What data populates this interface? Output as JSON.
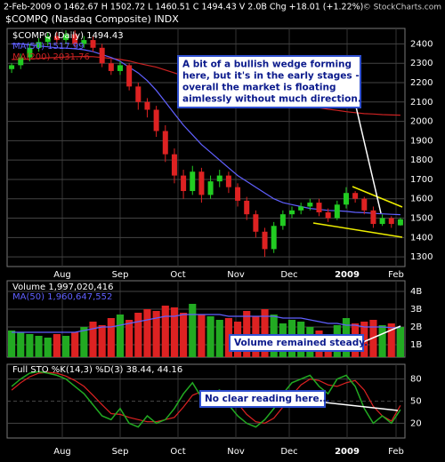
{
  "chart_data": [
    {
      "type": "candlestick",
      "title": "$COMPQ (Nasdaq Composite) INDX",
      "header": "2-Feb-2009   O 1462.67  H 1502.72  L 1460.51  C 1494.43  V 2.0B  Chg +18.01 (+1.22%)",
      "watermark": "© StockCharts.com",
      "x_labels": [
        "Aug",
        "Sep",
        "Oct",
        "Nov",
        "Dec",
        "2009",
        "Feb"
      ],
      "ylim": [
        1250,
        2480
      ],
      "yticks": [
        1300,
        1400,
        1500,
        1600,
        1700,
        1800,
        1900,
        2000,
        2100,
        2200,
        2300,
        2400
      ],
      "grid": true,
      "series": [
        {
          "name": "$COMPQ (Daily) 1494.43",
          "up_color": "#22cc22",
          "down_color": "#dd2222",
          "open": [
            2270,
            2290,
            2330,
            2380,
            2410,
            2440,
            2420,
            2450,
            2400,
            2420,
            2380,
            2300,
            2260,
            2290,
            2180,
            2100,
            2060,
            1950,
            1830,
            1720,
            1640,
            1740,
            1620,
            1690,
            1720,
            1660,
            1590,
            1520,
            1430,
            1340,
            1460,
            1520,
            1540,
            1560,
            1580,
            1530,
            1500,
            1570,
            1630,
            1600,
            1540,
            1470,
            1500,
            1463
          ],
          "high": [
            2300,
            2350,
            2400,
            2430,
            2460,
            2460,
            2470,
            2470,
            2440,
            2440,
            2400,
            2320,
            2310,
            2300,
            2200,
            2120,
            2080,
            1980,
            1860,
            1750,
            1770,
            1760,
            1720,
            1750,
            1740,
            1680,
            1610,
            1540,
            1450,
            1480,
            1540,
            1560,
            1580,
            1600,
            1600,
            1550,
            1590,
            1660,
            1640,
            1610,
            1560,
            1520,
            1510,
            1503
          ],
          "low": [
            2250,
            2270,
            2310,
            2360,
            2390,
            2400,
            2400,
            2380,
            2380,
            2360,
            2280,
            2240,
            2240,
            2160,
            2060,
            2020,
            1920,
            1790,
            1680,
            1600,
            1620,
            1580,
            1600,
            1660,
            1630,
            1560,
            1490,
            1400,
            1300,
            1320,
            1440,
            1500,
            1520,
            1540,
            1510,
            1480,
            1490,
            1550,
            1580,
            1520,
            1450,
            1460,
            1450,
            1461
          ],
          "close": [
            2290,
            2330,
            2380,
            2410,
            2440,
            2420,
            2450,
            2400,
            2420,
            2380,
            2300,
            2260,
            2290,
            2180,
            2100,
            2060,
            1950,
            1830,
            1720,
            1640,
            1740,
            1620,
            1690,
            1720,
            1660,
            1590,
            1520,
            1430,
            1340,
            1460,
            1520,
            1540,
            1560,
            1580,
            1530,
            1500,
            1570,
            1630,
            1600,
            1540,
            1470,
            1500,
            1470,
            1494
          ]
        },
        {
          "name": "MA(50) 1517.99",
          "color": "#6060ff",
          "values": [
            2400,
            2400,
            2395,
            2390,
            2385,
            2380,
            2378,
            2375,
            2370,
            2360,
            2345,
            2330,
            2310,
            2280,
            2250,
            2210,
            2160,
            2100,
            2040,
            1980,
            1930,
            1880,
            1840,
            1800,
            1760,
            1720,
            1690,
            1660,
            1630,
            1600,
            1580,
            1570,
            1560,
            1550,
            1545,
            1540,
            1538,
            1535,
            1530,
            1528,
            1525,
            1522,
            1520,
            1518
          ]
        },
        {
          "name": "MA(200) 2031.76",
          "color": "#cc2222",
          "values": [
            2320,
            2320,
            2322,
            2325,
            2328,
            2330,
            2332,
            2334,
            2335,
            2334,
            2330,
            2325,
            2320,
            2312,
            2300,
            2290,
            2280,
            2265,
            2250,
            2235,
            2220,
            2205,
            2190,
            2180,
            2170,
            2158,
            2145,
            2130,
            2118,
            2108,
            2100,
            2092,
            2085,
            2078,
            2070,
            2063,
            2057,
            2050,
            2045,
            2040,
            2038,
            2035,
            2033,
            2032
          ]
        }
      ],
      "annotation": [
        "A bit of a bullish wedge forming",
        "here, but it's in the early stages -",
        "overall the market is floating",
        "aimlessly without much direction."
      ]
    },
    {
      "type": "bar",
      "ylim": [
        0.3,
        4.6
      ],
      "yticks": [
        {
          "value": 1,
          "label": "1B"
        },
        {
          "value": 2,
          "label": "2B"
        },
        {
          "value": 3,
          "label": "3B"
        },
        {
          "value": 4,
          "label": "4B"
        }
      ],
      "grid": true,
      "series": [
        {
          "name": "Volume 1,997,020,416",
          "up_color": "#22aa22",
          "down_color": "#dd2222",
          "values": [
            1.8,
            1.7,
            1.6,
            1.5,
            1.4,
            1.6,
            1.5,
            1.7,
            2.0,
            2.3,
            2.1,
            2.5,
            2.7,
            2.4,
            2.8,
            3.0,
            2.9,
            3.2,
            3.1,
            2.8,
            3.3,
            2.7,
            2.6,
            2.4,
            2.5,
            2.3,
            2.9,
            2.6,
            3.0,
            2.7,
            2.2,
            2.4,
            2.3,
            2.0,
            1.8,
            1.6,
            2.1,
            2.5,
            2.2,
            2.3,
            2.4,
            2.1,
            2.2,
            2.0
          ]
        },
        {
          "name": "MA(50) 1,960,647,552",
          "color": "#6060ff",
          "values": [
            1.7,
            1.7,
            1.7,
            1.7,
            1.7,
            1.7,
            1.7,
            1.7,
            1.8,
            1.9,
            2.0,
            2.0,
            2.1,
            2.2,
            2.3,
            2.4,
            2.5,
            2.6,
            2.6,
            2.7,
            2.7,
            2.7,
            2.7,
            2.7,
            2.6,
            2.6,
            2.6,
            2.6,
            2.6,
            2.6,
            2.5,
            2.5,
            2.5,
            2.4,
            2.3,
            2.2,
            2.2,
            2.1,
            2.1,
            2.0,
            2.0,
            2.0,
            1.96,
            1.96
          ]
        }
      ],
      "annotation": [
        "Volume remained steady."
      ]
    },
    {
      "type": "line",
      "title": "Full STO %K(14,3) %D(3) 38.44, 44.16",
      "x_labels": [
        "Aug",
        "Sep",
        "Oct",
        "Nov",
        "Dec",
        "2009",
        "Feb"
      ],
      "ylim": [
        0,
        100
      ],
      "yticks": [
        20,
        50,
        80
      ],
      "grid": true,
      "series": [
        {
          "color": "#22aa22",
          "values": [
            70,
            80,
            88,
            90,
            88,
            85,
            80,
            70,
            60,
            45,
            30,
            25,
            40,
            20,
            15,
            30,
            20,
            25,
            40,
            60,
            75,
            55,
            60,
            65,
            45,
            30,
            20,
            15,
            25,
            40,
            60,
            75,
            80,
            85,
            70,
            60,
            80,
            85,
            70,
            40,
            20,
            30,
            20,
            38.44
          ]
        },
        {
          "color": "#dd2222",
          "values": [
            65,
            75,
            83,
            88,
            89,
            88,
            84,
            78,
            70,
            58,
            45,
            33,
            32,
            28,
            25,
            22,
            22,
            25,
            28,
            42,
            58,
            63,
            63,
            60,
            57,
            47,
            32,
            22,
            20,
            27,
            42,
            58,
            72,
            80,
            78,
            72,
            70,
            75,
            78,
            65,
            43,
            30,
            23,
            44.16
          ]
        }
      ],
      "annotation": [
        "No clear reading here..."
      ]
    }
  ]
}
